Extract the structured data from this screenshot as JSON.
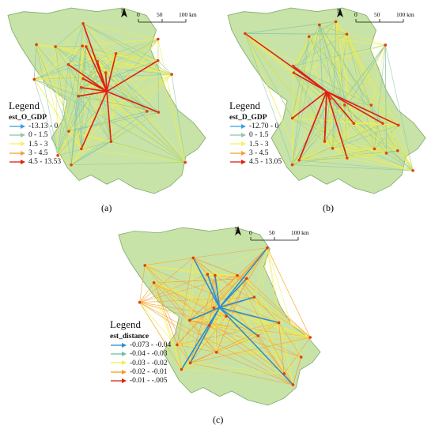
{
  "panels": [
    {
      "id": "a",
      "caption": "(a)",
      "legend_title": "Legend",
      "legend_field": "est_O_GDP",
      "legend_items": [
        {
          "label": "-13.13 - 0",
          "color": "#3aa0e0"
        },
        {
          "label": "0 - 1.5",
          "color": "#8fc7a8"
        },
        {
          "label": "1.5 - 3",
          "color": "#f4f060"
        },
        {
          "label": "3 - 4.5",
          "color": "#f5a030"
        },
        {
          "label": "4.5 - 13.53",
          "color": "#e02010"
        }
      ],
      "dominant_color": "#f4ee4a",
      "secondary_color": "#8fc7a8",
      "highlight_color": "#e02010"
    },
    {
      "id": "b",
      "caption": "(b)",
      "legend_title": "Legend",
      "legend_field": "est_D_GDP",
      "legend_items": [
        {
          "label": "-12.70 - 0",
          "color": "#3aa0e0"
        },
        {
          "label": "0 - 1.5",
          "color": "#8fc7a8"
        },
        {
          "label": "1.5 - 3",
          "color": "#f4f060"
        },
        {
          "label": "3 - 4.5",
          "color": "#f5a030"
        },
        {
          "label": "4.5 - 13.05",
          "color": "#e02010"
        }
      ],
      "dominant_color": "#f4ee4a",
      "secondary_color": "#8fc7a8",
      "highlight_color": "#e02010"
    },
    {
      "id": "c",
      "caption": "(c)",
      "legend_title": "Legend",
      "legend_field": "est_distance",
      "legend_items": [
        {
          "label": "-0.073 - -0.04",
          "color": "#2a8fd0"
        },
        {
          "label": "-0.04 - -0.03",
          "color": "#6fbfa0"
        },
        {
          "label": "-0.03 - -0.02",
          "color": "#f4ee4a"
        },
        {
          "label": "-0.02 - -0.01",
          "color": "#f59a30"
        },
        {
          "label": "-0.01 - -.005",
          "color": "#e02010"
        }
      ],
      "dominant_color": "#f5a040",
      "secondary_color": "#f4ee4a",
      "highlight_color": "#2a8fd0"
    }
  ],
  "scale_bar": {
    "labels": [
      "0",
      "50",
      "100 km"
    ]
  },
  "north_arrow": {
    "label": "N"
  },
  "colors": {
    "province_fill": "#c7e3a7",
    "province_stroke": "#7fa86a",
    "node": "#e04010"
  }
}
